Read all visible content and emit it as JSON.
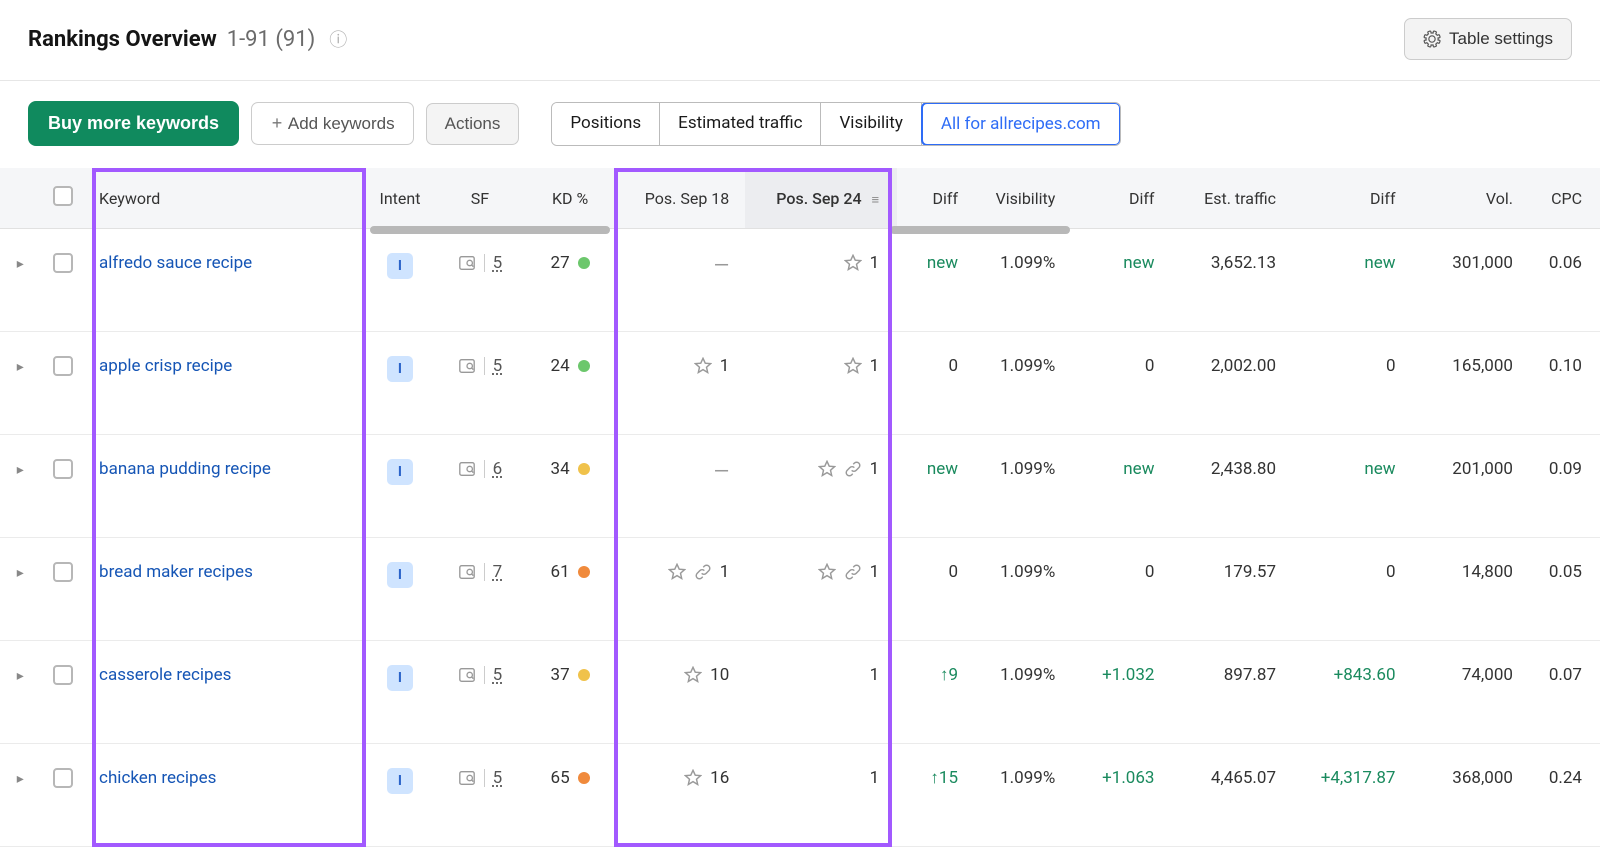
{
  "header": {
    "title": "Rankings Overview",
    "range": "1-91 (91)"
  },
  "table_settings_label": "Table settings",
  "toolbar": {
    "buy_label": "Buy more keywords",
    "add_label": "Add keywords",
    "actions_label": "Actions",
    "segments": [
      "Positions",
      "Estimated traffic",
      "Visibility",
      "All for allrecipes.com"
    ],
    "active_segment": 3
  },
  "columns": {
    "keyword": "Keyword",
    "intent": "Intent",
    "sf": "SF",
    "kd": "KD %",
    "pos1": "Pos. Sep 18",
    "pos2": "Pos. Sep 24",
    "diff1": "Diff",
    "visibility": "Visibility",
    "diff2": "Diff",
    "est_traffic": "Est. traffic",
    "diff3": "Diff",
    "vol": "Vol.",
    "cpc": "CPC"
  },
  "colors": {
    "kd_green": "#6cc76c",
    "kd_yellow": "#f0c24b",
    "kd_orange": "#f08a3c",
    "link": "#1555b5",
    "new": "#1a8a5e",
    "highlight_border": "#a259ff"
  },
  "rows": [
    {
      "keyword": "alfredo sauce recipe",
      "intent": "I",
      "sf": "5",
      "kd": "27",
      "kd_color": "#6cc76c",
      "pos1": {
        "text": "—"
      },
      "pos2": {
        "star": true,
        "text": "1"
      },
      "diff1": {
        "text": "new",
        "cls": "txt-new"
      },
      "visibility": "1.099%",
      "diff2": {
        "text": "new",
        "cls": "txt-new"
      },
      "est_traffic": "3,652.13",
      "diff3": {
        "text": "new",
        "cls": "txt-new"
      },
      "vol": "301,000",
      "cpc": "0.06"
    },
    {
      "keyword": "apple crisp recipe",
      "intent": "I",
      "sf": "5",
      "kd": "24",
      "kd_color": "#6cc76c",
      "pos1": {
        "star": true,
        "text": "1"
      },
      "pos2": {
        "star": true,
        "text": "1"
      },
      "diff1": {
        "text": "0"
      },
      "visibility": "1.099%",
      "diff2": {
        "text": "0"
      },
      "est_traffic": "2,002.00",
      "diff3": {
        "text": "0"
      },
      "vol": "165,000",
      "cpc": "0.10"
    },
    {
      "keyword": "banana pudding recipe",
      "intent": "I",
      "sf": "6",
      "kd": "34",
      "kd_color": "#f0c24b",
      "pos1": {
        "text": "—"
      },
      "pos2": {
        "star": true,
        "link": true,
        "text": "1"
      },
      "diff1": {
        "text": "new",
        "cls": "txt-new"
      },
      "visibility": "1.099%",
      "diff2": {
        "text": "new",
        "cls": "txt-new"
      },
      "est_traffic": "2,438.80",
      "diff3": {
        "text": "new",
        "cls": "txt-new"
      },
      "vol": "201,000",
      "cpc": "0.09"
    },
    {
      "keyword": "bread maker recipes",
      "intent": "I",
      "sf": "7",
      "kd": "61",
      "kd_color": "#f08a3c",
      "pos1": {
        "star": true,
        "link": true,
        "text": "1"
      },
      "pos2": {
        "star": true,
        "link": true,
        "text": "1"
      },
      "diff1": {
        "text": "0"
      },
      "visibility": "1.099%",
      "diff2": {
        "text": "0"
      },
      "est_traffic": "179.57",
      "diff3": {
        "text": "0"
      },
      "vol": "14,800",
      "cpc": "0.05"
    },
    {
      "keyword": "casserole recipes",
      "intent": "I",
      "sf": "5",
      "kd": "37",
      "kd_color": "#f0c24b",
      "pos1": {
        "star": true,
        "text": "10"
      },
      "pos2": {
        "text": "1"
      },
      "diff1": {
        "text": "↑9",
        "cls": "txt-pos"
      },
      "visibility": "1.099%",
      "diff2": {
        "text": "+1.032",
        "cls": "txt-pos"
      },
      "est_traffic": "897.87",
      "diff3": {
        "text": "+843.60",
        "cls": "txt-pos"
      },
      "vol": "74,000",
      "cpc": "0.07"
    },
    {
      "keyword": "chicken recipes",
      "intent": "I",
      "sf": "5",
      "kd": "65",
      "kd_color": "#f08a3c",
      "pos1": {
        "star": true,
        "text": "16"
      },
      "pos2": {
        "text": "1"
      },
      "diff1": {
        "text": "↑15",
        "cls": "txt-pos"
      },
      "visibility": "1.099%",
      "diff2": {
        "text": "+1.063",
        "cls": "txt-pos"
      },
      "est_traffic": "4,465.07",
      "diff3": {
        "text": "+4,317.87",
        "cls": "txt-pos"
      },
      "vol": "368,000",
      "cpc": "0.24"
    }
  ]
}
